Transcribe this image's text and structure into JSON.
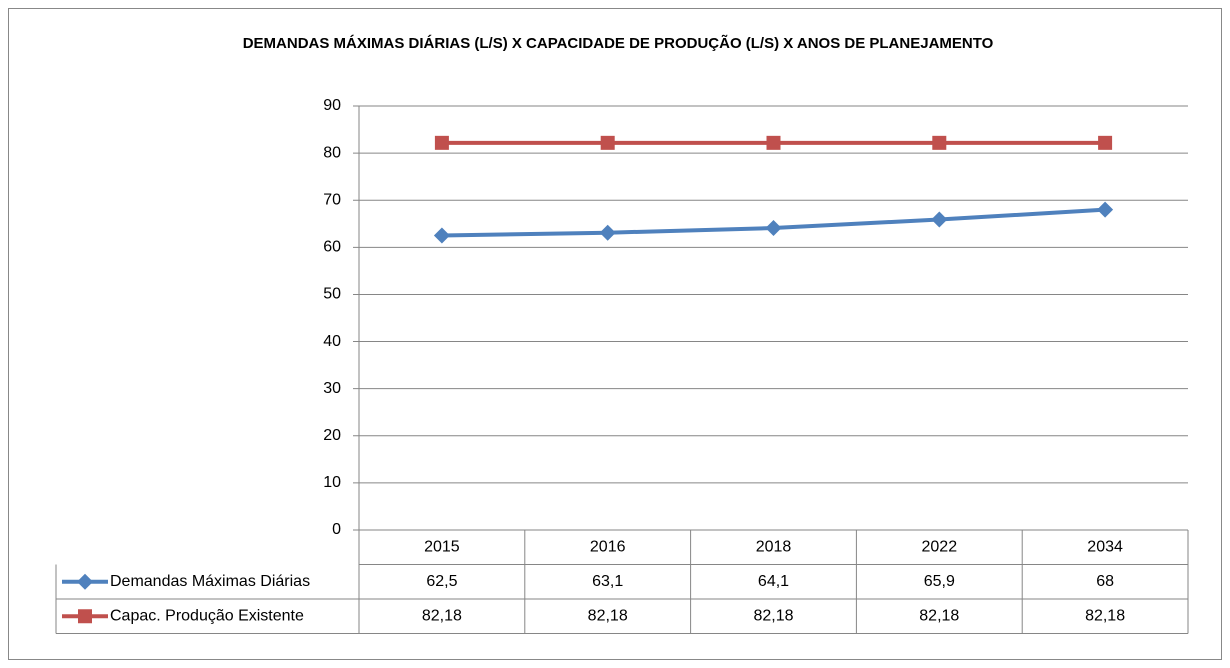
{
  "chart_data": {
    "type": "line",
    "title": "DEMANDAS MÁXIMAS DIÁRIAS (L/S) X CAPACIDADE DE PRODUÇÃO (L/S)  X ANOS DE PLANEJAMENTO",
    "categories": [
      "2015",
      "2016",
      "2018",
      "2022",
      "2034"
    ],
    "series": [
      {
        "name": "Demandas Máximas Diárias",
        "color": "#4f81bd",
        "marker": "diamond",
        "values": [
          62.5,
          63.1,
          64.1,
          65.9,
          68
        ],
        "value_labels": [
          "62,5",
          "63,1",
          "64,1",
          "65,9",
          "68"
        ]
      },
      {
        "name": "Capac. Produção Existente",
        "color": "#c0504d",
        "marker": "square",
        "values": [
          82.18,
          82.18,
          82.18,
          82.18,
          82.18
        ],
        "value_labels": [
          "82,18",
          "82,18",
          "82,18",
          "82,18",
          "82,18"
        ]
      }
    ],
    "ylim": [
      0,
      90
    ],
    "yticks": [
      0,
      10,
      20,
      30,
      40,
      50,
      60,
      70,
      80,
      90
    ],
    "grid": true,
    "data_table": true
  }
}
